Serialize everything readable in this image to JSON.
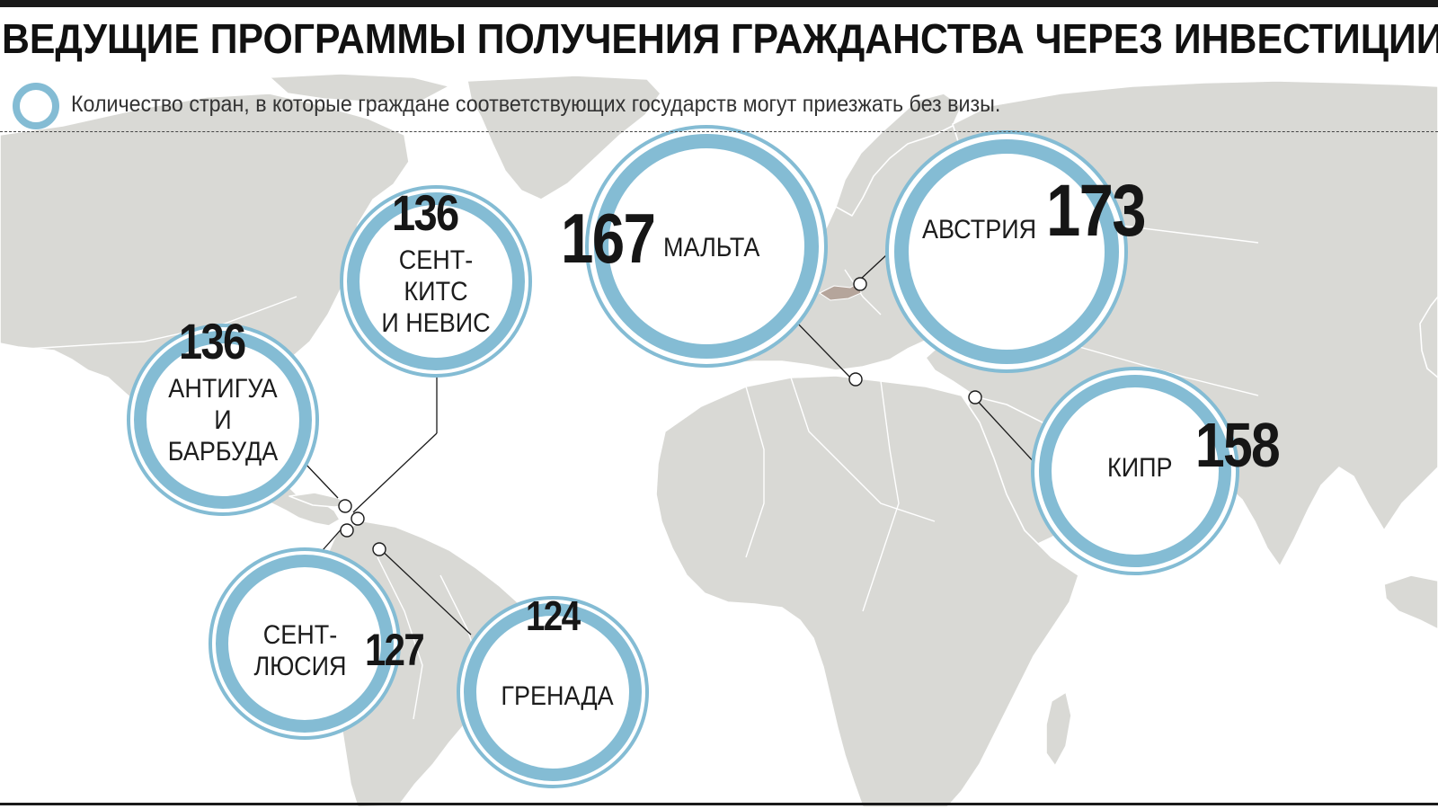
{
  "title": "ВЕДУЩИЕ ПРОГРАММЫ ПОЛУЧЕНИЯ ГРАЖДАНСТВА ЧЕРЕЗ ИНВЕСТИЦИИ",
  "legend": {
    "text": "Количество стран, в которые граждане соответствующих государств могут приезжать без визы.",
    "icon": "ring-icon"
  },
  "colors": {
    "ring": "#84bcd4",
    "land": "#d9d9d5",
    "borders": "#ffffff",
    "highlight": "#b5a59b",
    "text": "#1c1c1c"
  },
  "programs": [
    {
      "id": "antigua",
      "name_lines": [
        "АНТИГУА",
        "И",
        "БАРБУДА"
      ],
      "count": 136
    },
    {
      "id": "saint-kitts",
      "name_lines": [
        "СЕНТ-",
        "КИТС",
        "И НЕВИС"
      ],
      "count": 136
    },
    {
      "id": "saint-lucia",
      "name_lines": [
        "СЕНТ-",
        "ЛЮСИЯ"
      ],
      "count": 127
    },
    {
      "id": "grenada",
      "name_lines": [
        "ГРЕНАДА"
      ],
      "count": 124
    },
    {
      "id": "malta",
      "name_lines": [
        "МАЛЬТА"
      ],
      "count": 167
    },
    {
      "id": "austria",
      "name_lines": [
        "АВСТРИЯ"
      ],
      "count": 173
    },
    {
      "id": "cyprus",
      "name_lines": [
        "КИПР"
      ],
      "count": 158
    }
  ]
}
